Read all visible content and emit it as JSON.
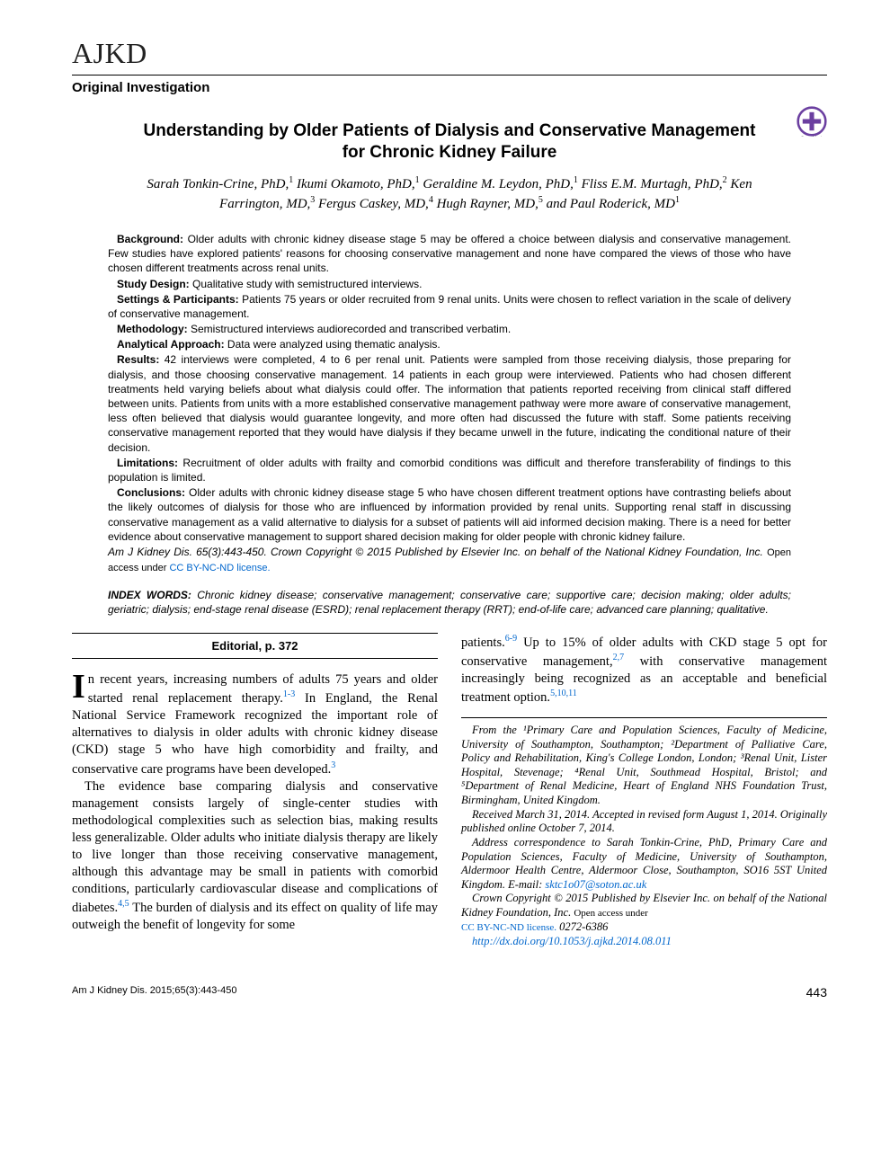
{
  "journal": {
    "logo": "AJKD",
    "section": "Original Investigation"
  },
  "article": {
    "title": "Understanding by Older Patients of Dialysis and Conservative Management for Chronic Kidney Failure",
    "authors_html": "Sarah Tonkin-Crine, PhD,<sup>1</sup> Ikumi Okamoto, PhD,<sup>1</sup> Geraldine M. Leydon, PhD,<sup>1</sup> Fliss E.M. Murtagh, PhD,<sup>2</sup> Ken Farrington, MD,<sup>3</sup> Fergus Caskey, MD,<sup>4</sup> Hugh Rayner, MD,<sup>5</sup> and Paul Roderick, MD<sup>1</sup>"
  },
  "abstract": {
    "background_label": "Background:",
    "background": " Older adults with chronic kidney disease stage 5 may be offered a choice between dialysis and conservative management. Few studies have explored patients' reasons for choosing conservative management and none have compared the views of those who have chosen different treatments across renal units.",
    "design_label": "Study Design:",
    "design": " Qualitative study with semistructured interviews.",
    "setting_label": "Settings & Participants:",
    "setting": " Patients 75 years or older recruited from 9 renal units. Units were chosen to reflect variation in the scale of delivery of conservative management.",
    "method_label": "Methodology:",
    "method": " Semistructured interviews audiorecorded and transcribed verbatim.",
    "analytical_label": "Analytical Approach:",
    "analytical": " Data were analyzed using thematic analysis.",
    "results_label": "Results:",
    "results": " 42 interviews were completed, 4 to 6 per renal unit. Patients were sampled from those receiving dialysis, those preparing for dialysis, and those choosing conservative management. 14 patients in each group were interviewed. Patients who had chosen different treatments held varying beliefs about what dialysis could offer. The information that patients reported receiving from clinical staff differed between units. Patients from units with a more established conservative management pathway were more aware of conservative management, less often believed that dialysis would guarantee longevity, and more often had discussed the future with staff. Some patients receiving conservative management reported that they would have dialysis if they became unwell in the future, indicating the conditional nature of their decision.",
    "limitations_label": "Limitations:",
    "limitations": " Recruitment of older adults with frailty and comorbid conditions was difficult and therefore transferability of findings to this population is limited.",
    "conclusions_label": "Conclusions:",
    "conclusions": " Older adults with chronic kidney disease stage 5 who have chosen different treatment options have contrasting beliefs about the likely outcomes of dialysis for those who are influenced by information provided by renal units. Supporting renal staff in discussing conservative management as a valid alternative to dialysis for a subset of patients will aid informed decision making. There is a need for better evidence about conservative management to support shared decision making for older people with chronic kidney failure.",
    "citation": "Am J Kidney Dis. 65(3):443-450. Crown Copyright © 2015 Published by Elsevier Inc. on behalf of the National Kidney Foundation, Inc. ",
    "license_prefix": "Open access under ",
    "license_text": "CC BY-NC-ND license."
  },
  "index_words": {
    "label": "INDEX WORDS:",
    "text": " Chronic kidney disease; conservative management; conservative care; supportive care; decision making; older adults; geriatric; dialysis; end-stage renal disease (ESRD); renal replacement therapy (RRT); end-of-life care; advanced care planning; qualitative."
  },
  "editorial_ref": "Editorial, p. 372",
  "body": {
    "p1_dropcap": "I",
    "p1_rest": "n recent years, increasing numbers of adults 75 years and older started renal replacement therapy.",
    "p1_ref": "1-3",
    "p1_cont": " In England, the Renal National Service Framework recognized the important role of alternatives to dialysis in older adults with chronic kidney disease (CKD) stage 5 who have high comorbidity and frailty, and conservative care programs have been developed.",
    "p1_ref2": "3",
    "p2a": "The evidence base comparing dialysis and conservative management consists largely of single-center studies with methodological complexities such as selection bias, making results less generalizable. Older adults who initiate dialysis therapy are likely to live longer than those receiving conservative management, although this advantage may be small in patients with comorbid conditions, particularly cardiovascular disease and complications of diabetes.",
    "p2_ref": "4,5",
    "p2b": " The burden of dialysis and its effect on quality of life may outweigh the benefit of longevity for some",
    "p3a": "patients.",
    "p3_ref1": "6-9",
    "p3b": " Up to 15% of older adults with CKD stage 5 opt for conservative management,",
    "p3_ref2": "2,7",
    "p3c": " with conservative management increasingly being recognized as an acceptable and beneficial treatment option.",
    "p3_ref3": "5,10,11"
  },
  "affiliations": {
    "from": "From the ¹Primary Care and Population Sciences, Faculty of Medicine, University of Southampton, Southampton; ²Department of Palliative Care, Policy and Rehabilitation, King's College London, London; ³Renal Unit, Lister Hospital, Stevenage; ⁴Renal Unit, Southmead Hospital, Bristol; and ⁵Department of Renal Medicine, Heart of England NHS Foundation Trust, Birmingham, United Kingdom.",
    "received": "Received March 31, 2014. Accepted in revised form August 1, 2014. Originally published online October 7, 2014.",
    "correspondence": "Address correspondence to Sarah Tonkin-Crine, PhD, Primary Care and Population Sciences, Faculty of Medicine, University of Southampton, Aldermoor Health Centre, Aldermoor Close, Southampton, SO16 5ST United Kingdom. E-mail: ",
    "email": "sktc1o07@soton.ac.uk",
    "copyright": "Crown Copyright © 2015 Published by Elsevier Inc. on behalf of the National Kidney Foundation, Inc. ",
    "license_prefix": "Open access under",
    "license_text": "CC BY-NC-ND license.",
    "issn": " 0272-6386",
    "doi": "http://dx.doi.org/10.1053/j.ajkd.2014.08.011"
  },
  "footer": {
    "citation": "Am J Kidney Dis. 2015;65(3):443-450",
    "page": "443"
  },
  "colors": {
    "link": "#0066cc",
    "text": "#000000",
    "bg": "#ffffff"
  }
}
